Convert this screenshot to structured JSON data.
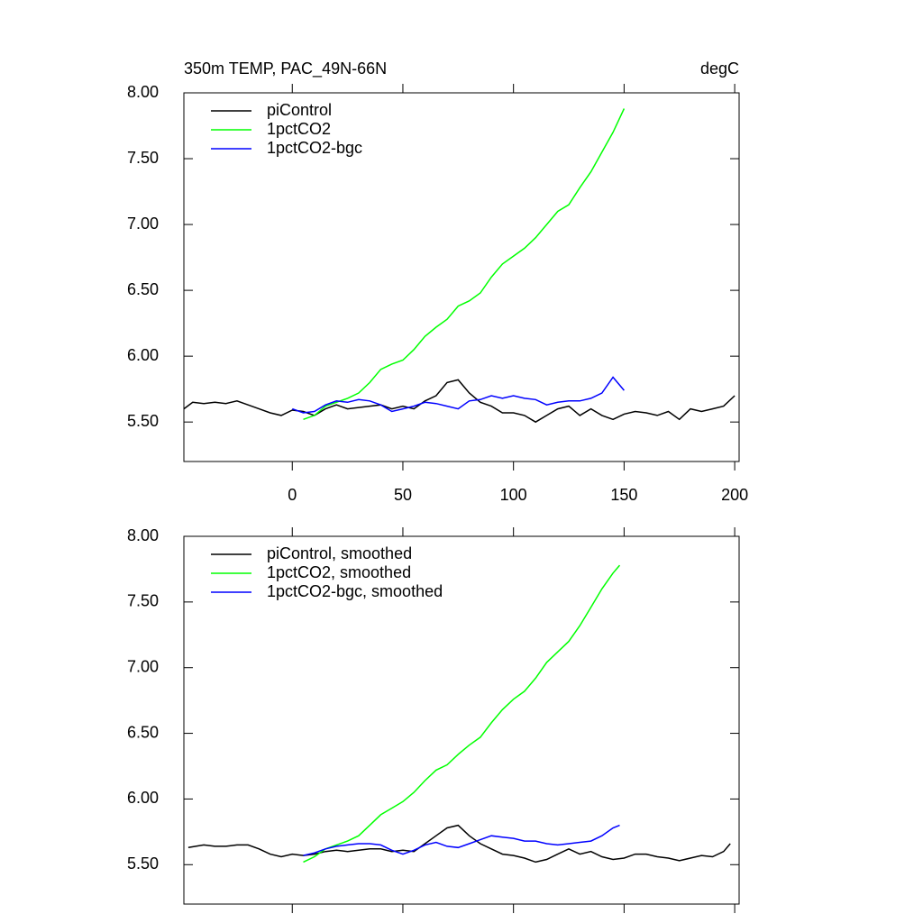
{
  "chart_data": [
    {
      "type": "line",
      "title": "350m TEMP, PAC_49N-66N",
      "units": "degC",
      "xlim": [
        -49,
        202
      ],
      "xticks": [
        0,
        50,
        100,
        150,
        200
      ],
      "xtick_labels": true,
      "ylim": [
        5.2,
        8.0
      ],
      "yticks": [
        {
          "value": 5.5,
          "label": "5.50"
        },
        {
          "value": 6.0,
          "label": "6.00"
        },
        {
          "value": 6.5,
          "label": "6.50"
        },
        {
          "value": 7.0,
          "label": "7.00"
        },
        {
          "value": 7.5,
          "label": "7.50"
        },
        {
          "value": 8.0,
          "label": "8.00"
        }
      ],
      "legend": "upper left",
      "series": [
        {
          "name": "piControl",
          "color": "#000000",
          "x": [
            -49,
            -45,
            -40,
            -35,
            -30,
            -25,
            -20,
            -15,
            -10,
            -5,
            0,
            5,
            10,
            15,
            20,
            25,
            30,
            35,
            40,
            45,
            50,
            55,
            60,
            65,
            70,
            75,
            80,
            85,
            90,
            95,
            100,
            105,
            110,
            115,
            120,
            125,
            130,
            135,
            140,
            145,
            150,
            155,
            160,
            165,
            170,
            175,
            180,
            185,
            190,
            195,
            200
          ],
          "values": [
            5.6,
            5.65,
            5.64,
            5.65,
            5.64,
            5.66,
            5.63,
            5.6,
            5.57,
            5.55,
            5.59,
            5.58,
            5.55,
            5.6,
            5.63,
            5.6,
            5.61,
            5.62,
            5.63,
            5.6,
            5.62,
            5.6,
            5.66,
            5.7,
            5.8,
            5.82,
            5.72,
            5.65,
            5.62,
            5.57,
            5.57,
            5.55,
            5.5,
            5.55,
            5.6,
            5.62,
            5.55,
            5.6,
            5.55,
            5.52,
            5.56,
            5.58,
            5.57,
            5.55,
            5.58,
            5.52,
            5.6,
            5.58,
            5.6,
            5.62,
            5.7
          ]
        },
        {
          "name": "1pctCO2",
          "color": "#00ff00",
          "x": [
            5,
            10,
            15,
            20,
            25,
            30,
            35,
            40,
            45,
            50,
            55,
            60,
            65,
            70,
            75,
            80,
            85,
            90,
            95,
            100,
            105,
            110,
            115,
            120,
            125,
            130,
            135,
            140,
            145,
            150
          ],
          "values": [
            5.52,
            5.55,
            5.62,
            5.65,
            5.68,
            5.72,
            5.8,
            5.9,
            5.94,
            5.97,
            6.05,
            6.15,
            6.22,
            6.28,
            6.38,
            6.42,
            6.48,
            6.6,
            6.7,
            6.76,
            6.82,
            6.9,
            7.0,
            7.1,
            7.15,
            7.28,
            7.4,
            7.55,
            7.7,
            7.88
          ]
        },
        {
          "name": "1pctCO2-bgc",
          "color": "#0000ff",
          "x": [
            0,
            5,
            10,
            15,
            20,
            25,
            30,
            35,
            40,
            45,
            50,
            55,
            60,
            65,
            70,
            75,
            80,
            85,
            90,
            95,
            100,
            105,
            110,
            115,
            120,
            125,
            130,
            135,
            140,
            145,
            150
          ],
          "values": [
            5.6,
            5.57,
            5.58,
            5.63,
            5.66,
            5.65,
            5.67,
            5.66,
            5.63,
            5.58,
            5.6,
            5.62,
            5.65,
            5.64,
            5.62,
            5.6,
            5.66,
            5.67,
            5.7,
            5.68,
            5.7,
            5.68,
            5.67,
            5.63,
            5.65,
            5.66,
            5.66,
            5.68,
            5.72,
            5.84,
            5.74
          ]
        }
      ]
    },
    {
      "type": "line",
      "xlim": [
        -49,
        202
      ],
      "xticks": [
        0,
        50,
        100,
        150,
        200
      ],
      "xtick_labels": false,
      "ylim": [
        5.2,
        8.0
      ],
      "yticks": [
        {
          "value": 5.5,
          "label": "5.50"
        },
        {
          "value": 6.0,
          "label": "6.00"
        },
        {
          "value": 6.5,
          "label": "6.50"
        },
        {
          "value": 7.0,
          "label": "7.00"
        },
        {
          "value": 7.5,
          "label": "7.50"
        },
        {
          "value": 8.0,
          "label": "8.00"
        }
      ],
      "legend": "upper left",
      "series": [
        {
          "name": "piControl, smoothed",
          "color": "#000000",
          "x": [
            -47,
            -40,
            -35,
            -30,
            -25,
            -20,
            -15,
            -10,
            -5,
            0,
            5,
            10,
            15,
            20,
            25,
            30,
            35,
            40,
            45,
            50,
            55,
            60,
            65,
            70,
            75,
            80,
            85,
            90,
            95,
            100,
            105,
            110,
            115,
            120,
            125,
            130,
            135,
            140,
            145,
            150,
            155,
            160,
            165,
            170,
            175,
            180,
            185,
            190,
            195,
            198
          ],
          "values": [
            5.63,
            5.65,
            5.64,
            5.64,
            5.65,
            5.65,
            5.62,
            5.58,
            5.56,
            5.58,
            5.57,
            5.58,
            5.6,
            5.61,
            5.6,
            5.61,
            5.62,
            5.62,
            5.6,
            5.61,
            5.6,
            5.66,
            5.72,
            5.78,
            5.8,
            5.72,
            5.66,
            5.62,
            5.58,
            5.57,
            5.55,
            5.52,
            5.54,
            5.58,
            5.62,
            5.58,
            5.6,
            5.56,
            5.54,
            5.55,
            5.58,
            5.58,
            5.56,
            5.55,
            5.53,
            5.55,
            5.57,
            5.56,
            5.6,
            5.66
          ]
        },
        {
          "name": "1pctCO2, smoothed",
          "color": "#00ff00",
          "x": [
            5,
            10,
            15,
            20,
            25,
            30,
            35,
            40,
            45,
            50,
            55,
            60,
            65,
            70,
            75,
            80,
            85,
            90,
            95,
            100,
            105,
            110,
            115,
            120,
            125,
            130,
            135,
            140,
            145,
            148
          ],
          "values": [
            5.52,
            5.56,
            5.62,
            5.65,
            5.68,
            5.72,
            5.8,
            5.88,
            5.93,
            5.98,
            6.05,
            6.14,
            6.22,
            6.26,
            6.34,
            6.41,
            6.47,
            6.58,
            6.68,
            6.76,
            6.82,
            6.92,
            7.04,
            7.12,
            7.2,
            7.32,
            7.46,
            7.6,
            7.72,
            7.78
          ]
        },
        {
          "name": "1pctCO2-bgc, smoothed",
          "color": "#0000ff",
          "x": [
            5,
            10,
            15,
            20,
            25,
            30,
            35,
            40,
            45,
            50,
            55,
            60,
            65,
            70,
            75,
            80,
            85,
            90,
            95,
            100,
            105,
            110,
            115,
            120,
            125,
            130,
            135,
            140,
            145,
            148
          ],
          "values": [
            5.57,
            5.59,
            5.62,
            5.64,
            5.65,
            5.66,
            5.66,
            5.65,
            5.61,
            5.58,
            5.61,
            5.65,
            5.67,
            5.64,
            5.63,
            5.66,
            5.69,
            5.72,
            5.71,
            5.7,
            5.68,
            5.68,
            5.66,
            5.65,
            5.66,
            5.67,
            5.68,
            5.72,
            5.78,
            5.8
          ]
        }
      ]
    }
  ]
}
